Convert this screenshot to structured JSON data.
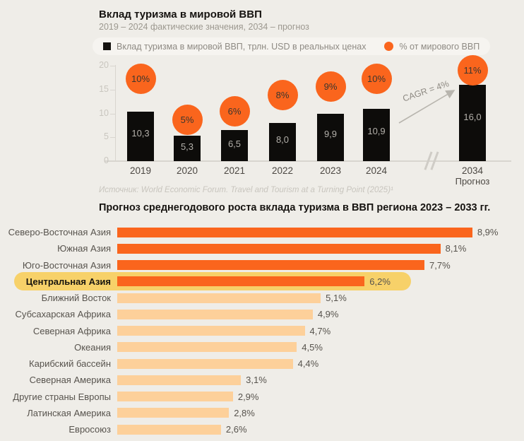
{
  "colors": {
    "background": "#EFEDE8",
    "orange": "#FA651D",
    "light_orange": "#FDD09A",
    "highlight_yellow": "#F7D169",
    "bar_black": "#0D0C0A"
  },
  "top_chart": {
    "title": "Вклад туризма в мировой ВВП",
    "subtitle": "2019 – 2024 фактические значения, 2034 – прогноз",
    "legend": {
      "bars_label": "Вклад туризма в мировой ВВП, трлн. USD в реальных ценах",
      "pct_label": "% от мирового ВВП"
    },
    "y_ticks": [
      "20",
      "15",
      "10",
      "5",
      "0"
    ],
    "cagr_label": "CAGR = 4%",
    "source": "Источник: World Economic Forum. Travel and Tourism at a Turning Point (2025)¹",
    "bars": [
      {
        "year": "2019",
        "value": 10.3,
        "value_label": "10,3",
        "pct": 10,
        "pct_label": "10%"
      },
      {
        "year": "2020",
        "value": 5.3,
        "value_label": "5,3",
        "pct": 5,
        "pct_label": "5%"
      },
      {
        "year": "2021",
        "value": 6.5,
        "value_label": "6,5",
        "pct": 6,
        "pct_label": "6%"
      },
      {
        "year": "2022",
        "value": 8.0,
        "value_label": "8,0",
        "pct": 8,
        "pct_label": "8%"
      },
      {
        "year": "2023",
        "value": 9.9,
        "value_label": "9,9",
        "pct": 9,
        "pct_label": "9%"
      },
      {
        "year": "2024",
        "value": 10.9,
        "value_label": "10,9",
        "pct": 10,
        "pct_label": "10%"
      },
      {
        "year": "2034",
        "year_sublabel": "Прогноз",
        "value": 16.0,
        "value_label": "16,0",
        "pct": 11,
        "pct_label": "11%"
      }
    ]
  },
  "bottom_chart": {
    "title": "Прогноз среднегодового роста вклада туризма в ВВП региона 2023 – 2033 гг.",
    "rows": [
      {
        "label": "Северо-Восточная Азия",
        "value": 8.9,
        "value_label": "8,9%",
        "tone": "bright",
        "highlighted": false
      },
      {
        "label": "Южная Азия",
        "value": 8.1,
        "value_label": "8,1%",
        "tone": "bright",
        "highlighted": false
      },
      {
        "label": "Юго-Восточная Азия",
        "value": 7.7,
        "value_label": "7,7%",
        "tone": "bright",
        "highlighted": false
      },
      {
        "label": "Центральная Азия",
        "value": 6.2,
        "value_label": "6,2%",
        "tone": "bright",
        "highlighted": true
      },
      {
        "label": "Ближний Восток",
        "value": 5.1,
        "value_label": "5,1%",
        "tone": "light",
        "highlighted": false
      },
      {
        "label": "Субсахарская Африка",
        "value": 4.9,
        "value_label": "4,9%",
        "tone": "light",
        "highlighted": false
      },
      {
        "label": "Северная Африка",
        "value": 4.7,
        "value_label": "4,7%",
        "tone": "light",
        "highlighted": false
      },
      {
        "label": "Океания",
        "value": 4.5,
        "value_label": "4,5%",
        "tone": "light",
        "highlighted": false
      },
      {
        "label": "Карибский бассейн",
        "value": 4.4,
        "value_label": "4,4%",
        "tone": "light",
        "highlighted": false
      },
      {
        "label": "Северная Америка",
        "value": 3.1,
        "value_label": "3,1%",
        "tone": "light",
        "highlighted": false
      },
      {
        "label": "Другие страны Европы",
        "value": 2.9,
        "value_label": "2,9%",
        "tone": "light",
        "highlighted": false
      },
      {
        "label": "Латинская Америка",
        "value": 2.8,
        "value_label": "2,8%",
        "tone": "light",
        "highlighted": false
      },
      {
        "label": "Евросоюз",
        "value": 2.6,
        "value_label": "2,6%",
        "tone": "light",
        "highlighted": false
      }
    ]
  },
  "chart_data": [
    {
      "type": "bar",
      "title": "Вклад туризма в мировой ВВП",
      "subtitle": "2019 – 2024 фактические значения, 2034 – прогноз",
      "categories": [
        "2019",
        "2020",
        "2021",
        "2022",
        "2023",
        "2024",
        "2034 Прогноз"
      ],
      "series": [
        {
          "name": "Вклад туризма в мировой ВВП, трлн. USD в реальных ценах",
          "values": [
            10.3,
            5.3,
            6.5,
            8.0,
            9.9,
            10.9,
            16.0
          ]
        },
        {
          "name": "% от мирового ВВП",
          "values": [
            10,
            5,
            6,
            8,
            9,
            10,
            11
          ]
        }
      ],
      "ylabel": "",
      "xlabel": "",
      "ylim": [
        0,
        20
      ],
      "y_ticks": [
        0,
        5,
        10,
        15,
        20
      ],
      "grid": false,
      "legend_position": "top",
      "annotations": [
        "CAGR = 4%",
        "Источник: World Economic Forum. Travel and Tourism at a Turning Point (2025)¹"
      ],
      "axis_break_between": [
        "2024",
        "2034 Прогноз"
      ]
    },
    {
      "type": "bar",
      "orientation": "horizontal",
      "title": "Прогноз среднегодового роста вклада туризма в ВВП региона 2023 – 2033 гг.",
      "categories": [
        "Северо-Восточная Азия",
        "Южная Азия",
        "Юго-Восточная Азия",
        "Центральная Азия",
        "Ближний Восток",
        "Субсахарская Африка",
        "Северная Африка",
        "Океания",
        "Карибский бассейн",
        "Северная Америка",
        "Другие страны Европы",
        "Латинская Америка",
        "Евросоюз"
      ],
      "values": [
        8.9,
        8.1,
        7.7,
        6.2,
        5.1,
        4.9,
        4.7,
        4.5,
        4.4,
        3.1,
        2.9,
        2.8,
        2.6
      ],
      "highlighted_category": "Центральная Азия",
      "xlabel": "",
      "ylabel": "",
      "xlim": [
        0,
        9.5
      ],
      "grid": false,
      "legend_position": "none"
    }
  ]
}
